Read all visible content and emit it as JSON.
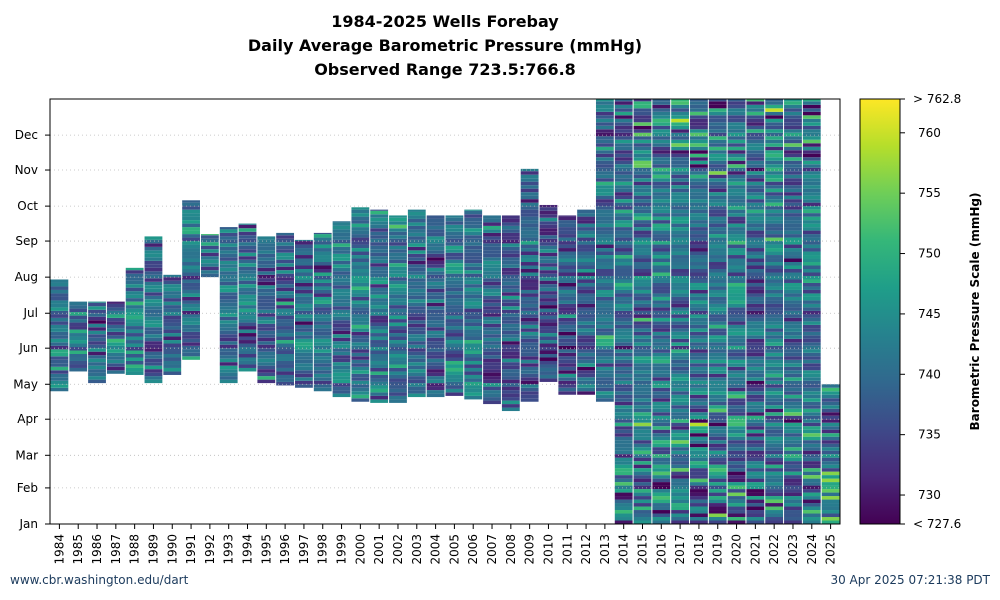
{
  "title": {
    "line1": "1984-2025 Wells Forebay",
    "line2": "Daily Average Barometric Pressure (mmHg)",
    "line3": "Observed Range 723.5:766.8"
  },
  "footer": {
    "left": "www.cbr.washington.edu/dart",
    "right": "30 Apr 2025 07:21:38 PDT"
  },
  "colors": {
    "viridis": [
      "#440154",
      "#482878",
      "#3e4989",
      "#31688e",
      "#26828e",
      "#1f9e89",
      "#35b779",
      "#6ece58",
      "#b5de2b",
      "#fde725"
    ]
  },
  "chart_data": {
    "type": "heatmap",
    "x_labels": [
      "1984",
      "1985",
      "1986",
      "1987",
      "1988",
      "1989",
      "1990",
      "1991",
      "1992",
      "1993",
      "1994",
      "1995",
      "1996",
      "1997",
      "1998",
      "1999",
      "2000",
      "2001",
      "2002",
      "2003",
      "2004",
      "2005",
      "2006",
      "2007",
      "2008",
      "2009",
      "2010",
      "2011",
      "2012",
      "2013",
      "2014",
      "2015",
      "2016",
      "2017",
      "2018",
      "2019",
      "2020",
      "2021",
      "2022",
      "2023",
      "2024",
      "2025"
    ],
    "y_labels": [
      "Jan",
      "Feb",
      "Mar",
      "Apr",
      "May",
      "Jun",
      "Jul",
      "Aug",
      "Sep",
      "Oct",
      "Nov",
      "Dec"
    ],
    "y_axis": "day of year (Jan at bottom)",
    "color_scale": {
      "label": "Barometric Pressure Scale (mmHg)",
      "min": 727.6,
      "max": 762.8,
      "min_label": "< 727.6",
      "max_label": "> 762.8",
      "ticks": [
        730,
        735,
        740,
        745,
        750,
        755,
        760
      ],
      "colormap": "viridis"
    },
    "grid": "dotted horizontal at month starts",
    "coverage": [
      {
        "year": "1984",
        "start": "Apr 25",
        "end": "Jul 29",
        "mean": 741
      },
      {
        "year": "1985",
        "start": "May 12",
        "end": "Jul 10",
        "mean": 740
      },
      {
        "year": "1986",
        "start": "May 2",
        "end": "Jul 10",
        "mean": 740
      },
      {
        "year": "1987",
        "start": "May 10",
        "end": "Jul 10",
        "mean": 740
      },
      {
        "year": "1988",
        "start": "May 9",
        "end": "Aug 8",
        "mean": 742
      },
      {
        "year": "1989",
        "start": "May 2",
        "end": "Sep 4",
        "mean": 740
      },
      {
        "year": "1990",
        "start": "May 9",
        "end": "Aug 2",
        "mean": 740
      },
      {
        "year": "1991",
        "start": "May 22",
        "end": "Oct 5",
        "mean": 741
      },
      {
        "year": "1992",
        "start": "Aug 1",
        "end": "Sep 6",
        "mean": 742
      },
      {
        "year": "1993",
        "start": "May 2",
        "end": "Sep 12",
        "mean": 740
      },
      {
        "year": "1994",
        "start": "May 12",
        "end": "Sep 15",
        "mean": 740
      },
      {
        "year": "1995",
        "start": "May 2",
        "end": "Sep 4",
        "mean": 739
      },
      {
        "year": "1996",
        "start": "Apr 30",
        "end": "Sep 7",
        "mean": 738
      },
      {
        "year": "1997",
        "start": "Apr 28",
        "end": "Sep 1",
        "mean": 739
      },
      {
        "year": "1998",
        "start": "Apr 25",
        "end": "Sep 7",
        "mean": 740
      },
      {
        "year": "1999",
        "start": "Apr 20",
        "end": "Sep 17",
        "mean": 741
      },
      {
        "year": "2000",
        "start": "Apr 16",
        "end": "Sep 29",
        "mean": 741
      },
      {
        "year": "2001",
        "start": "Apr 15",
        "end": "Sep 27",
        "mean": 741
      },
      {
        "year": "2002",
        "start": "Apr 15",
        "end": "Sep 22",
        "mean": 741
      },
      {
        "year": "2003",
        "start": "Apr 20",
        "end": "Sep 27",
        "mean": 740
      },
      {
        "year": "2004",
        "start": "Apr 20",
        "end": "Sep 22",
        "mean": 738
      },
      {
        "year": "2005",
        "start": "Apr 21",
        "end": "Sep 22",
        "mean": 741
      },
      {
        "year": "2006",
        "start": "Apr 18",
        "end": "Sep 27",
        "mean": 741
      },
      {
        "year": "2007",
        "start": "Apr 14",
        "end": "Sep 22",
        "mean": 738
      },
      {
        "year": "2008",
        "start": "Apr 8",
        "end": "Sep 22",
        "mean": 737
      },
      {
        "year": "2009",
        "start": "Apr 16",
        "end": "Nov 1",
        "mean": 738
      },
      {
        "year": "2010",
        "start": "May 3",
        "end": "Oct 1",
        "mean": 737
      },
      {
        "year": "2011",
        "start": "Apr 22",
        "end": "Sep 22",
        "mean": 737
      },
      {
        "year": "2012",
        "start": "Apr 22",
        "end": "Sep 27",
        "mean": 738
      },
      {
        "year": "2013",
        "start": "Apr 16",
        "end": "Dec 31",
        "mean": 741
      },
      {
        "year": "2014",
        "start": "Jan 1",
        "end": "Dec 31",
        "mean": 740
      },
      {
        "year": "2015",
        "start": "Jan 1",
        "end": "Dec 31",
        "mean": 741
      },
      {
        "year": "2016",
        "start": "Jan 1",
        "end": "Dec 31",
        "mean": 741
      },
      {
        "year": "2017",
        "start": "Jan 1",
        "end": "Dec 31",
        "mean": 741
      },
      {
        "year": "2018",
        "start": "Jan 1",
        "end": "Dec 31",
        "mean": 740
      },
      {
        "year": "2019",
        "start": "Jan 1",
        "end": "Dec 31",
        "mean": 741
      },
      {
        "year": "2020",
        "start": "Jan 1",
        "end": "Dec 31",
        "mean": 741
      },
      {
        "year": "2021",
        "start": "Jan 1",
        "end": "Dec 31",
        "mean": 739
      },
      {
        "year": "2022",
        "start": "Jan 1",
        "end": "Dec 31",
        "mean": 742
      },
      {
        "year": "2023",
        "start": "Jan 1",
        "end": "Dec 31",
        "mean": 740
      },
      {
        "year": "2024",
        "start": "Jan 1",
        "end": "Dec 31",
        "mean": 741
      },
      {
        "year": "2025",
        "start": "Jan 1",
        "end": "Apr 30",
        "mean": 743
      }
    ]
  }
}
